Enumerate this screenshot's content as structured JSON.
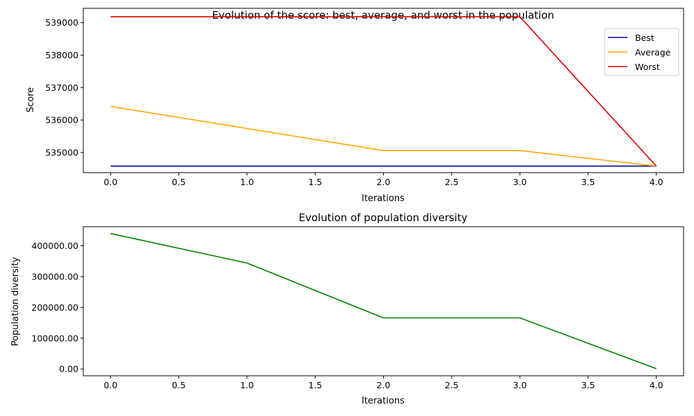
{
  "chart_data": [
    {
      "type": "line",
      "title": "Evolution of the score: best, average, and worst in the population",
      "xlabel": "Iterations",
      "ylabel": "Score",
      "xlim": [
        -0.2,
        4.2
      ],
      "ylim": [
        534380,
        539440
      ],
      "xticks": [
        0.0,
        0.5,
        1.0,
        1.5,
        2.0,
        2.5,
        3.0,
        3.5,
        4.0
      ],
      "xtick_labels": [
        "0.0",
        "0.5",
        "1.0",
        "1.5",
        "2.0",
        "2.5",
        "3.0",
        "3.5",
        "4.0"
      ],
      "yticks": [
        535000,
        536000,
        537000,
        538000,
        539000
      ],
      "ytick_labels": [
        "535000",
        "536000",
        "537000",
        "538000",
        "539000"
      ],
      "grid": false,
      "legend": "top-right",
      "x": [
        0,
        1,
        2,
        3,
        4
      ],
      "series": [
        {
          "name": "Best",
          "color": "#00008b",
          "values": [
            534580,
            534580,
            534580,
            534580,
            534580
          ]
        },
        {
          "name": "Average",
          "color": "#ffa500",
          "values": [
            536420,
            535740,
            535060,
            535060,
            534580
          ]
        },
        {
          "name": "Worst",
          "color": "#dd0000",
          "values": [
            539180,
            539180,
            539180,
            539180,
            534580
          ]
        }
      ]
    },
    {
      "type": "line",
      "title": "Evolution of population diversity",
      "xlabel": "Iterations",
      "ylabel": "Population diversity",
      "xlim": [
        -0.2,
        4.2
      ],
      "ylim": [
        -22000,
        462000
      ],
      "xticks": [
        0.0,
        0.5,
        1.0,
        1.5,
        2.0,
        2.5,
        3.0,
        3.5,
        4.0
      ],
      "xtick_labels": [
        "0.0",
        "0.5",
        "1.0",
        "1.5",
        "2.0",
        "2.5",
        "3.0",
        "3.5",
        "4.0"
      ],
      "yticks": [
        0,
        100000,
        200000,
        300000,
        400000
      ],
      "ytick_labels": [
        "0.00",
        "100000.00",
        "200000.00",
        "300000.00",
        "400000.00"
      ],
      "grid": false,
      "x": [
        0,
        1,
        2,
        3,
        4
      ],
      "series": [
        {
          "color": "#008000",
          "values": [
            440000,
            344000,
            166000,
            166000,
            1000
          ]
        }
      ]
    }
  ]
}
